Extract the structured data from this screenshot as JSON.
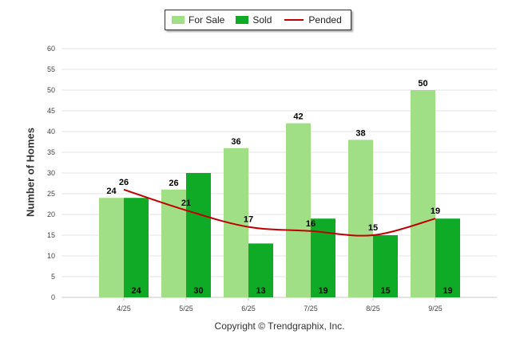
{
  "chart_data": {
    "type": "bar",
    "categories": [
      "4/25",
      "5/25",
      "6/25",
      "7/25",
      "8/25",
      "9/25"
    ],
    "series": [
      {
        "name": "For Sale",
        "kind": "bar",
        "color": "#a0df85",
        "values": [
          24,
          26,
          36,
          42,
          38,
          50
        ]
      },
      {
        "name": "Sold",
        "kind": "bar",
        "color": "#10ab26",
        "values": [
          24,
          30,
          13,
          19,
          15,
          19
        ]
      },
      {
        "name": "Pended",
        "kind": "line",
        "color": "#c00000",
        "values": [
          26,
          21,
          17,
          16,
          15,
          19
        ]
      }
    ],
    "ylabel": "Number of Homes",
    "xlabel": "",
    "ylim": [
      0,
      60
    ],
    "yticks": [
      0,
      5,
      10,
      15,
      20,
      25,
      30,
      35,
      40,
      45,
      50,
      55,
      60
    ],
    "grid": true,
    "legend": "top-center"
  },
  "legend": {
    "for_sale": "For Sale",
    "sold": "Sold",
    "pended": "Pended"
  },
  "copyright": "Copyright © Trendgraphix, Inc."
}
